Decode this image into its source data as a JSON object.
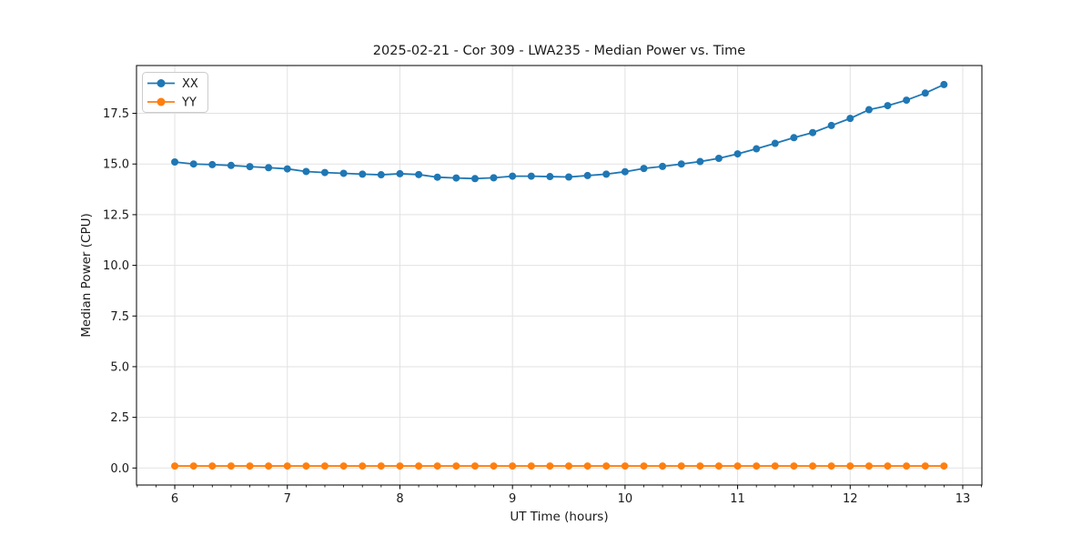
{
  "page": {
    "background": "#ffffff"
  },
  "chart_data": {
    "type": "line",
    "title": "2025-02-21 - Cor 309 - LWA235 - Median Power vs. Time",
    "xlabel": "UT Time (hours)",
    "ylabel": "Median Power (CPU)",
    "xlim": [
      5.66,
      13.17
    ],
    "ylim": [
      -0.84,
      19.86
    ],
    "xticks": [
      6,
      7,
      8,
      9,
      10,
      11,
      12,
      13
    ],
    "xtick_labels": [
      "6",
      "7",
      "8",
      "9",
      "10",
      "11",
      "12",
      "13"
    ],
    "yticks": [
      0,
      2.5,
      5,
      7.5,
      10,
      12.5,
      15,
      17.5
    ],
    "ytick_labels": [
      "0.0",
      "2.5",
      "5.0",
      "7.5",
      "10.0",
      "12.5",
      "15.0",
      "17.5"
    ],
    "x_minor_tick_step": 0.166667,
    "grid": true,
    "grid_color": "#e2e2e2",
    "legend_position": "upper left",
    "x": [
      6.0,
      6.167,
      6.333,
      6.5,
      6.667,
      6.833,
      7.0,
      7.167,
      7.333,
      7.5,
      7.667,
      7.833,
      8.0,
      8.167,
      8.333,
      8.5,
      8.667,
      8.833,
      9.0,
      9.167,
      9.333,
      9.5,
      9.667,
      9.833,
      10.0,
      10.167,
      10.333,
      10.5,
      10.667,
      10.833,
      11.0,
      11.167,
      11.333,
      11.5,
      11.667,
      11.833,
      12.0,
      12.167,
      12.333,
      12.5,
      12.667,
      12.833
    ],
    "series": [
      {
        "name": "XX",
        "color": "#1f77b4",
        "values": [
          15.1,
          15.0,
          14.97,
          14.93,
          14.87,
          14.82,
          14.76,
          14.63,
          14.58,
          14.54,
          14.5,
          14.47,
          14.52,
          14.48,
          14.35,
          14.31,
          14.28,
          14.32,
          14.4,
          14.4,
          14.38,
          14.36,
          14.43,
          14.5,
          14.62,
          14.78,
          14.88,
          15.0,
          15.12,
          15.28,
          15.5,
          15.75,
          16.02,
          16.3,
          16.55,
          16.9,
          17.25,
          17.68,
          17.88,
          18.15,
          18.5,
          18.92
        ]
      },
      {
        "name": "YY",
        "color": "#ff7f0e",
        "values": [
          0.1,
          0.1,
          0.1,
          0.1,
          0.1,
          0.1,
          0.1,
          0.1,
          0.1,
          0.1,
          0.1,
          0.1,
          0.1,
          0.1,
          0.1,
          0.1,
          0.1,
          0.1,
          0.1,
          0.1,
          0.1,
          0.1,
          0.1,
          0.1,
          0.1,
          0.1,
          0.1,
          0.1,
          0.1,
          0.1,
          0.1,
          0.1,
          0.1,
          0.1,
          0.1,
          0.1,
          0.1,
          0.1,
          0.1,
          0.1,
          0.1,
          0.1
        ]
      }
    ],
    "style": {
      "linewidth": 1.8,
      "marker": "o",
      "marker_radius": 4
    }
  }
}
